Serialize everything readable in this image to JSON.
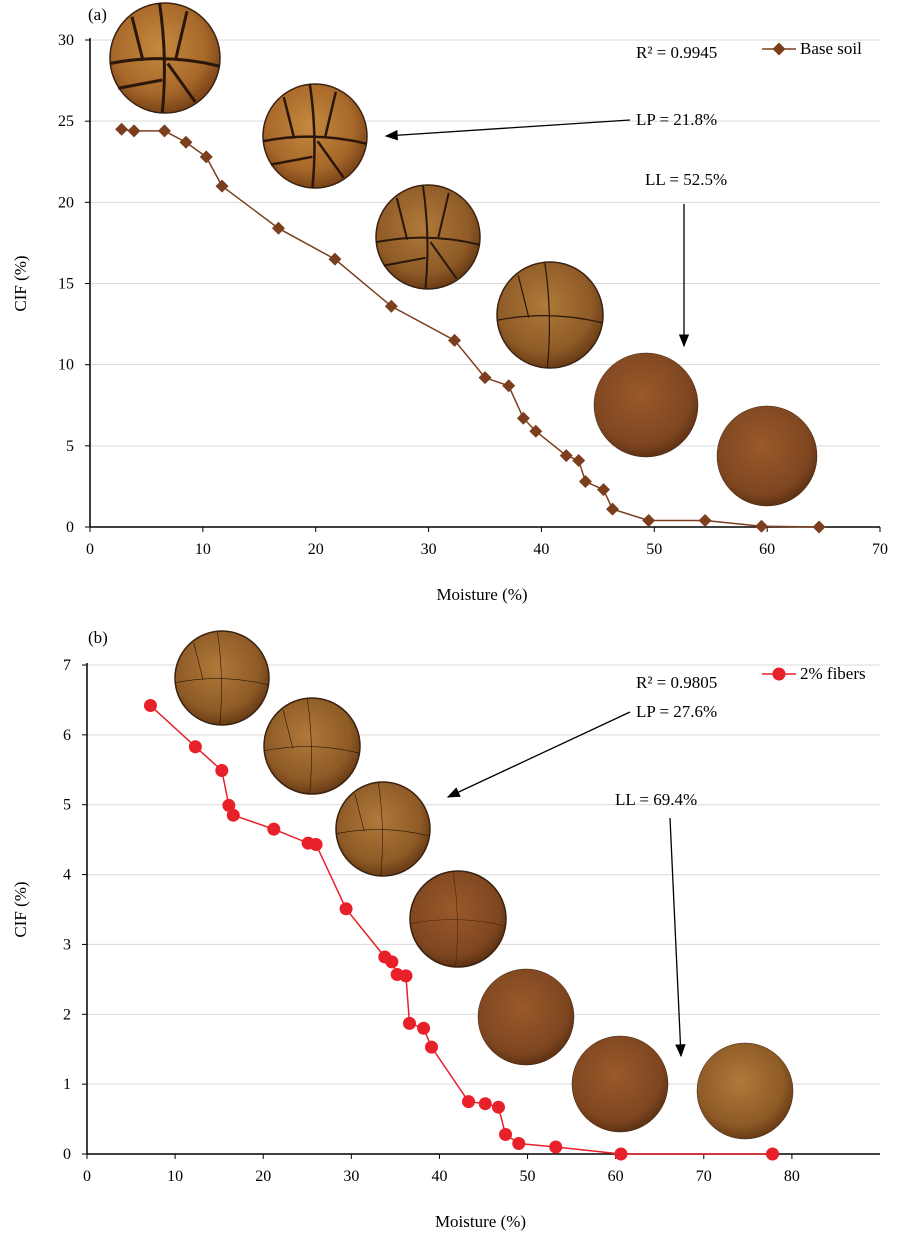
{
  "chart_data": [
    {
      "type": "line",
      "panel_label": "(a)",
      "xlabel": "Moisture (%)",
      "ylabel": "CIF (%)",
      "xlim": [
        0,
        70
      ],
      "ylim": [
        0,
        30
      ],
      "xticks": [
        0,
        10,
        20,
        30,
        40,
        50,
        60,
        70
      ],
      "yticks": [
        0,
        5,
        10,
        15,
        20,
        25,
        30
      ],
      "grid": "horizontal",
      "legend_position": "top-right",
      "series": [
        {
          "name": "Base soil",
          "color": "#7B3F1E",
          "marker": "diamond",
          "x": [
            2.8,
            3.9,
            6.6,
            8.5,
            10.3,
            11.7,
            16.7,
            21.7,
            26.7,
            32.3,
            35.0,
            37.1,
            38.4,
            39.5,
            42.2,
            43.3,
            43.9,
            45.5,
            46.3,
            49.5,
            54.5,
            59.5,
            64.6
          ],
          "y": [
            24.5,
            24.4,
            24.4,
            23.7,
            22.8,
            21.0,
            18.4,
            16.5,
            13.6,
            11.5,
            9.2,
            8.7,
            6.7,
            5.9,
            4.4,
            4.1,
            2.8,
            2.3,
            1.1,
            0.4,
            0.4,
            0.05,
            0.0
          ]
        }
      ],
      "annotations": {
        "r2": "R² = 0.9945",
        "lp": "LP = 21.8%",
        "ll": "LL = 52.5%"
      }
    },
    {
      "type": "line",
      "panel_label": "(b)",
      "xlabel": "Moisture (%)",
      "ylabel": "CIF (%)",
      "xlim": [
        0,
        90
      ],
      "ylim": [
        0,
        7
      ],
      "xticks": [
        0,
        10,
        20,
        30,
        40,
        50,
        60,
        70,
        80
      ],
      "yticks": [
        0,
        1,
        2,
        3,
        4,
        5,
        6,
        7
      ],
      "grid": "horizontal",
      "legend_position": "top-right",
      "series": [
        {
          "name": "2% fibers",
          "color": "#E8202A",
          "marker": "circle",
          "x": [
            7.2,
            12.3,
            15.3,
            16.1,
            16.6,
            21.2,
            25.1,
            26.0,
            29.4,
            33.8,
            34.6,
            35.2,
            36.2,
            36.6,
            38.2,
            39.1,
            43.3,
            45.2,
            46.7,
            47.5,
            49.0,
            53.2,
            60.6,
            77.8
          ],
          "y": [
            6.42,
            5.83,
            5.49,
            4.99,
            4.85,
            4.65,
            4.45,
            4.43,
            3.51,
            2.82,
            2.75,
            2.57,
            2.55,
            1.87,
            1.8,
            1.53,
            0.75,
            0.72,
            0.67,
            0.28,
            0.15,
            0.1,
            0.0,
            0.0
          ]
        }
      ],
      "annotations": {
        "r2": "R² = 0.9805",
        "lp": "LP = 27.6%",
        "ll": "LL = 69.4%"
      }
    }
  ]
}
